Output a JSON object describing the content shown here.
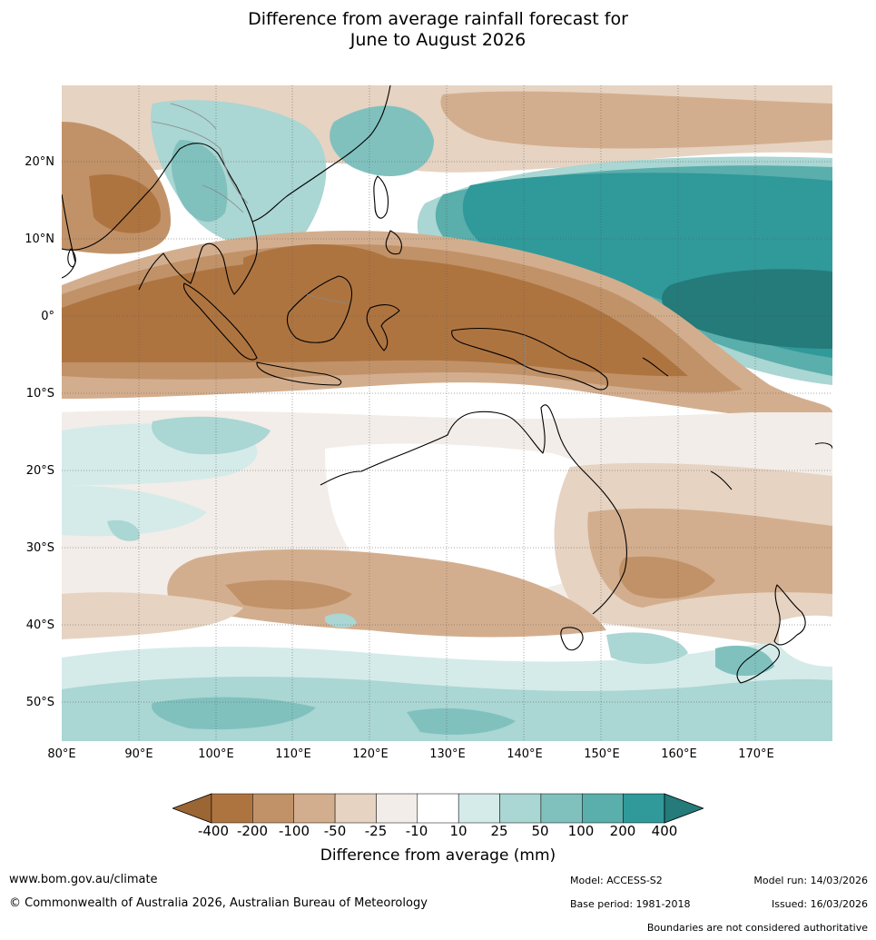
{
  "title_line1": "Difference from average rainfall forecast for",
  "title_line2": "June to August 2026",
  "lat_labels": [
    "20°N",
    "10°N",
    "0°",
    "10°S",
    "20°S",
    "30°S",
    "40°S",
    "50°S"
  ],
  "lon_labels": [
    "80°E",
    "90°E",
    "100°E",
    "110°E",
    "120°E",
    "130°E",
    "140°E",
    "150°E",
    "160°E",
    "170°E"
  ],
  "legend": {
    "title": "Difference from average (mm)",
    "ticks": [
      "-400",
      "-200",
      "-100",
      "-50",
      "-25",
      "-10",
      "10",
      "25",
      "50",
      "100",
      "200",
      "400"
    ],
    "colors": [
      "#9b6534",
      "#ae7440",
      "#c19268",
      "#d3ae8e",
      "#e6d3c2",
      "#f2ede8",
      "#ffffff",
      "#d5ebe9",
      "#aad6d3",
      "#80c1be",
      "#5aaeab",
      "#30999a",
      "#257a7a"
    ]
  },
  "footer": {
    "website": "www.bom.gov.au/climate",
    "copyright": "© Commonwealth of Australia 2026, Australian Bureau of Meteorology",
    "model": "Model: ACCESS-S2",
    "model_run": "Model run: 14/03/2026",
    "base_period": "Base period: 1981-2018",
    "issued": "Issued: 16/03/2026",
    "disclaimer": "Boundaries are not considered authoritative"
  }
}
